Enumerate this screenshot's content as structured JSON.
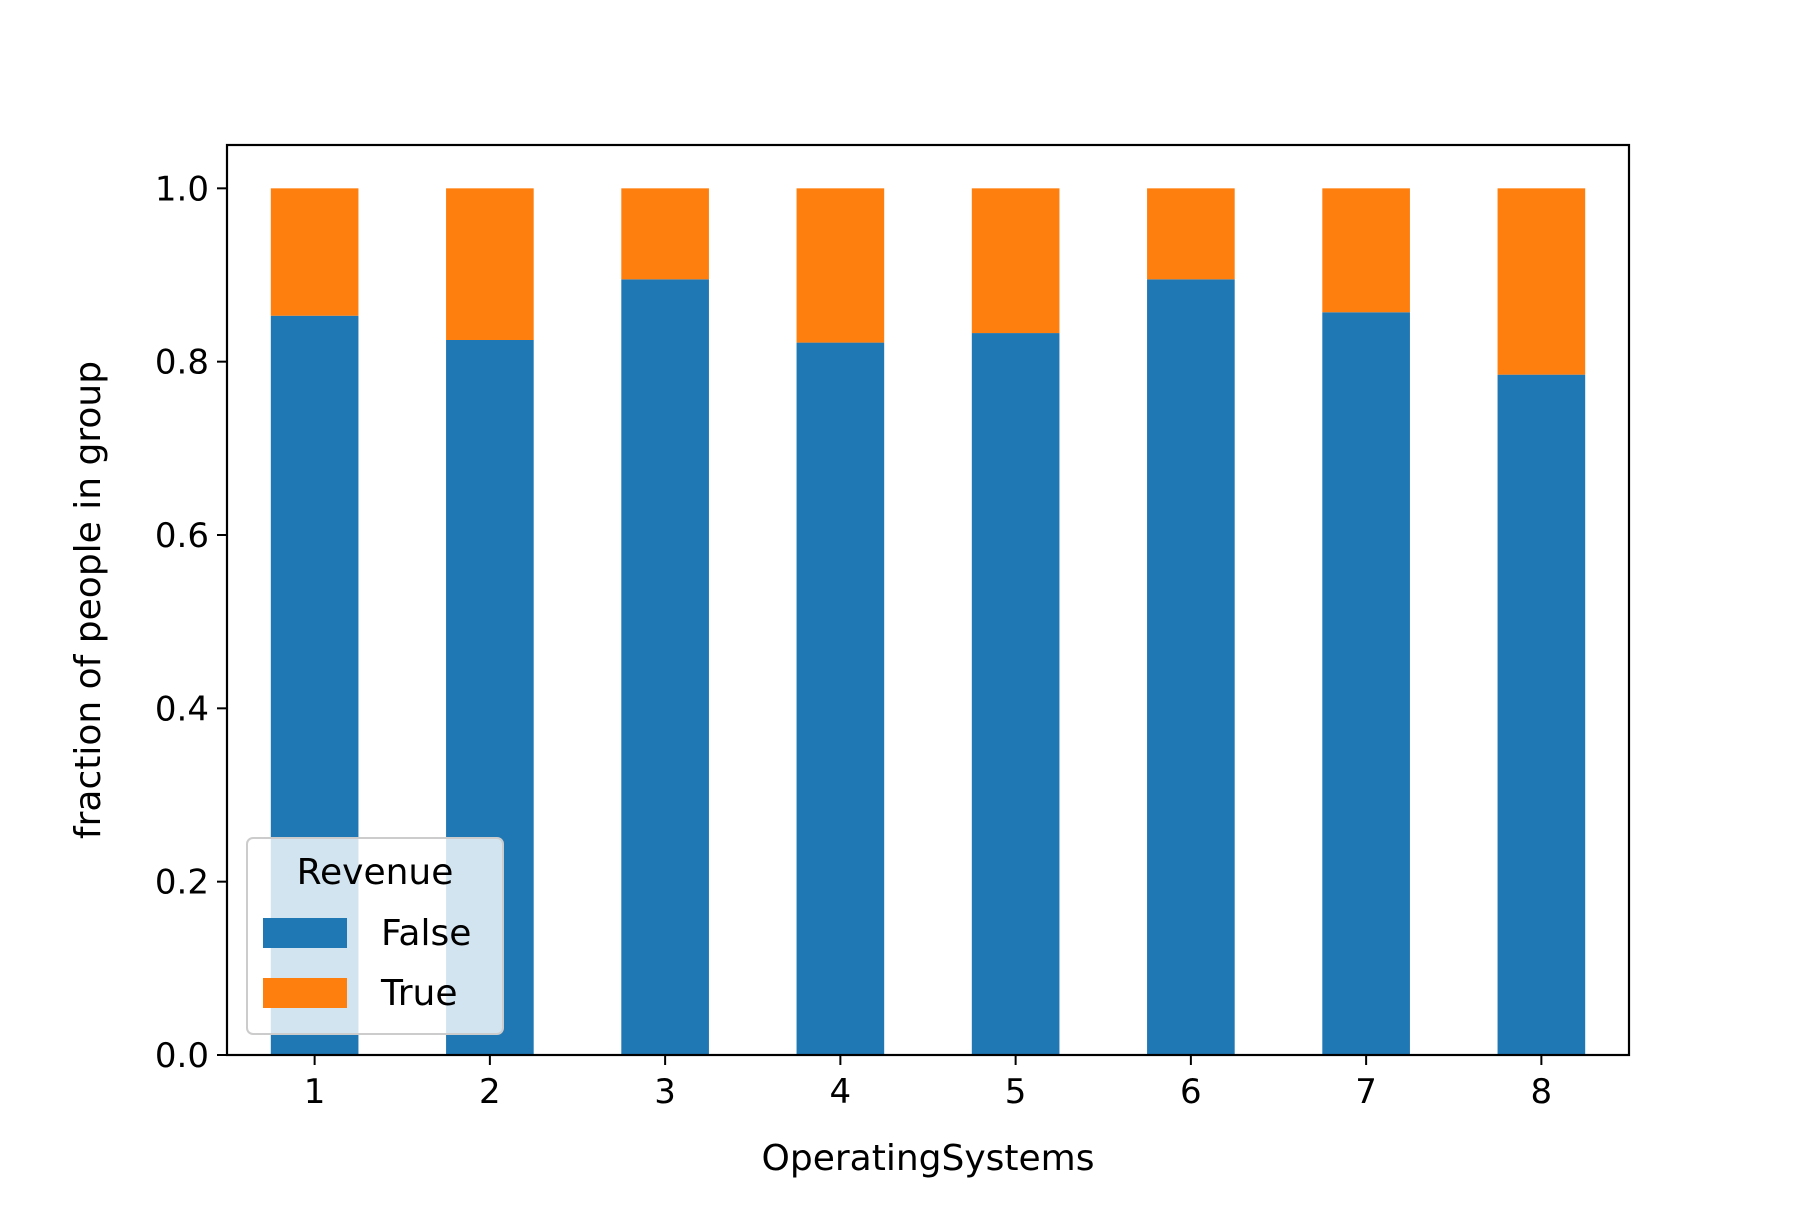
{
  "chart_data": {
    "type": "bar",
    "stacked": true,
    "title": "",
    "xlabel": "OperatingSystems",
    "ylabel": "fraction of people in group",
    "categories": [
      "1",
      "2",
      "3",
      "4",
      "5",
      "6",
      "7",
      "8"
    ],
    "series": [
      {
        "name": "False",
        "color": "#1f77b4",
        "values": [
          0.853,
          0.825,
          0.895,
          0.822,
          0.833,
          0.895,
          0.857,
          0.785
        ]
      },
      {
        "name": "True",
        "color": "#ff7f0e",
        "values": [
          0.147,
          0.175,
          0.105,
          0.178,
          0.167,
          0.105,
          0.143,
          0.215
        ]
      }
    ],
    "ylim": [
      0,
      1.05
    ],
    "yticks": [
      "0.0",
      "0.2",
      "0.4",
      "0.6",
      "0.8",
      "1.0"
    ],
    "grid": false,
    "legend": {
      "title": "Revenue",
      "placement": "lower-left"
    }
  }
}
